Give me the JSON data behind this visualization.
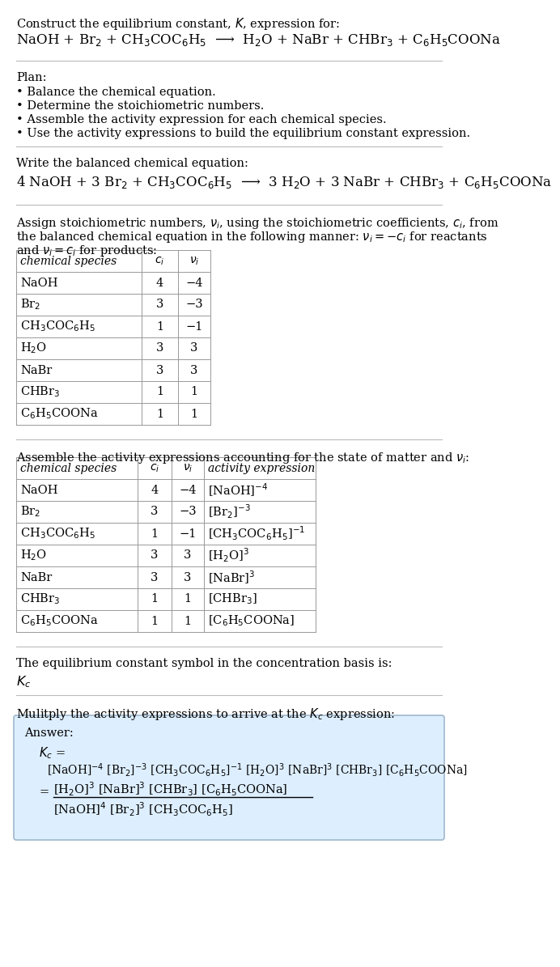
{
  "title_line1": "Construct the equilibrium constant, $K$, expression for:",
  "reaction_unbalanced": "NaOH + Br$_2$ + CH$_3$COC$_6$H$_5$  ⟶  H$_2$O + NaBr + CHBr$_3$ + C$_6$H$_5$COONa",
  "plan_header": "Plan:",
  "plan_items": [
    "• Balance the chemical equation.",
    "• Determine the stoichiometric numbers.",
    "• Assemble the activity expression for each chemical species.",
    "• Use the activity expressions to build the equilibrium constant expression."
  ],
  "balanced_header": "Write the balanced chemical equation:",
  "reaction_balanced": "4 NaOH + 3 Br$_2$ + CH$_3$COC$_6$H$_5$  ⟶  3 H$_2$O + 3 NaBr + CHBr$_3$ + C$_6$H$_5$COONa",
  "stoich_header_line1": "Assign stoichiometric numbers, $\\nu_i$, using the stoichiometric coefficients, $c_i$, from",
  "stoich_header_line2": "the balanced chemical equation in the following manner: $\\nu_i = -c_i$ for reactants",
  "stoich_header_line3": "and $\\nu_i = c_i$ for products:",
  "table1_cols": [
    "chemical species",
    "$c_i$",
    "$\\nu_i$"
  ],
  "table1_data": [
    [
      "NaOH",
      "4",
      "−4"
    ],
    [
      "Br$_2$",
      "3",
      "−3"
    ],
    [
      "CH$_3$COC$_6$H$_5$",
      "1",
      "−1"
    ],
    [
      "H$_2$O",
      "3",
      "3"
    ],
    [
      "NaBr",
      "3",
      "3"
    ],
    [
      "CHBr$_3$",
      "1",
      "1"
    ],
    [
      "C$_6$H$_5$COONa",
      "1",
      "1"
    ]
  ],
  "activity_header": "Assemble the activity expressions accounting for the state of matter and $\\nu_i$:",
  "table2_cols": [
    "chemical species",
    "$c_i$",
    "$\\nu_i$",
    "activity expression"
  ],
  "table2_data": [
    [
      "NaOH",
      "4",
      "−4",
      "[NaOH]$^{-4}$"
    ],
    [
      "Br$_2$",
      "3",
      "−3",
      "[Br$_2$]$^{-3}$"
    ],
    [
      "CH$_3$COC$_6$H$_5$",
      "1",
      "−1",
      "[CH$_3$COC$_6$H$_5$]$^{-1}$"
    ],
    [
      "H$_2$O",
      "3",
      "3",
      "[H$_2$O]$^3$"
    ],
    [
      "NaBr",
      "3",
      "3",
      "[NaBr]$^3$"
    ],
    [
      "CHBr$_3$",
      "1",
      "1",
      "[CHBr$_3$]"
    ],
    [
      "C$_6$H$_5$COONa",
      "1",
      "1",
      "[C$_6$H$_5$COONa]"
    ]
  ],
  "kc_header": "The equilibrium constant symbol in the concentration basis is:",
  "kc_symbol": "$K_c$",
  "multiply_header": "Mulitply the activity expressions to arrive at the $K_c$ expression:",
  "answer_label": "Answer:",
  "kc_line1": "$K_c$ =",
  "kc_line2": "[NaOH]$^{-4}$ [Br$_2$]$^{-3}$ [CH$_3$COC$_6$H$_5$]$^{-1}$ [H$_2$O]$^3$ [NaBr]$^3$ [CHBr$_3$] [C$_6$H$_5$COONa]",
  "kc_line3_eq": "=",
  "kc_numerator": "[H$_2$O]$^3$ [NaBr]$^3$ [CHBr$_3$] [C$_6$H$_5$COONa]",
  "kc_denominator": "[NaOH]$^4$ [Br$_2$]$^3$ [CH$_3$COC$_6$H$_5$]",
  "answer_box_color": "#ddeeff",
  "answer_box_border": "#a0b8cc",
  "bg_color": "#ffffff",
  "text_color": "#000000",
  "table_border_color": "#999999",
  "rule_color": "#bbbbbb",
  "font_size": 10.5,
  "small_font_size": 10.0
}
